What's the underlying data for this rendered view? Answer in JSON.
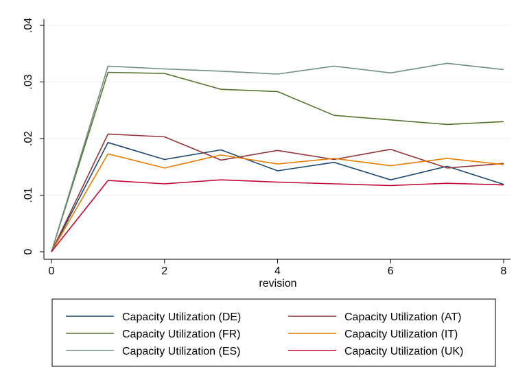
{
  "chart_data": {
    "type": "line",
    "xlabel": "revision",
    "ylabel": "",
    "xlim": [
      0,
      8
    ],
    "ylim": [
      0,
      0.04
    ],
    "x_ticks": [
      0,
      2,
      4,
      6,
      8
    ],
    "x_tick_labels": [
      "0",
      "2",
      "4",
      "6",
      "8"
    ],
    "y_ticks": [
      0,
      0.01,
      0.02,
      0.03,
      0.04
    ],
    "y_tick_labels": [
      "0",
      ".01",
      ".02",
      ".03",
      ".04"
    ],
    "grid": "horizontal",
    "legend_position": "bottom",
    "x": [
      0,
      1,
      2,
      3,
      4,
      5,
      6,
      7,
      8
    ],
    "series": [
      {
        "name": "Capacity Utilization (DE)",
        "color": "#1a476f",
        "values": [
          0,
          0.0193,
          0.0163,
          0.018,
          0.0143,
          0.0158,
          0.0127,
          0.0151,
          0.0119
        ]
      },
      {
        "name": "Capacity Utilization (AT)",
        "color": "#90353b",
        "values": [
          0,
          0.0208,
          0.0203,
          0.0162,
          0.0179,
          0.0163,
          0.0181,
          0.0148,
          0.0156
        ]
      },
      {
        "name": "Capacity Utilization (FR)",
        "color": "#55752f",
        "values": [
          0,
          0.0317,
          0.0315,
          0.0287,
          0.0283,
          0.0241,
          0.0233,
          0.0225,
          0.023
        ]
      },
      {
        "name": "Capacity Utilization (IT)",
        "color": "#e37e00",
        "values": [
          0,
          0.0173,
          0.0148,
          0.0171,
          0.0155,
          0.0165,
          0.0152,
          0.0165,
          0.0154
        ]
      },
      {
        "name": "Capacity Utilization (ES)",
        "color": "#6e8e84",
        "values": [
          0,
          0.0328,
          0.0323,
          0.0319,
          0.0314,
          0.0328,
          0.0316,
          0.0333,
          0.0322
        ]
      },
      {
        "name": "Capacity Utilization (UK)",
        "color": "#c10534",
        "values": [
          0,
          0.0126,
          0.012,
          0.0127,
          0.0123,
          0.012,
          0.0117,
          0.0121,
          0.0118
        ]
      }
    ]
  }
}
